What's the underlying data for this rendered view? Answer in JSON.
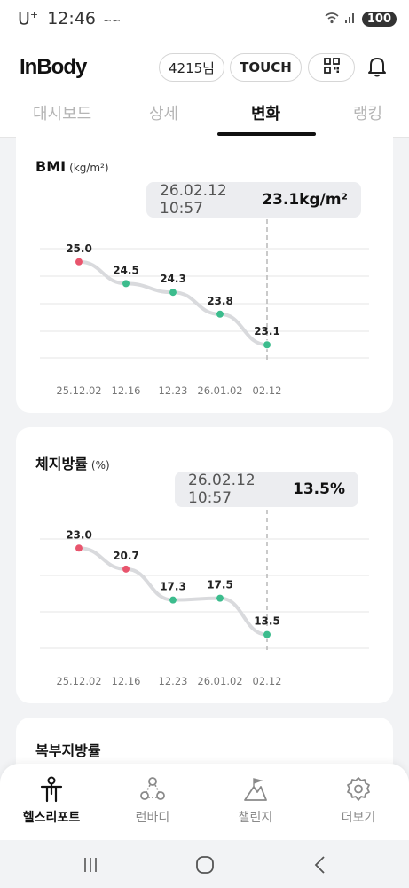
{
  "status": {
    "carrier": "U",
    "carrier_sup": "+",
    "time": "12:46",
    "battery": "100"
  },
  "header": {
    "logo": "InBody",
    "user_pill": "4215님",
    "touch_pill": "TOUCH"
  },
  "tabs": [
    "대시보드",
    "상세",
    "변화",
    "랭킹"
  ],
  "cards": [
    {
      "title": "BMI",
      "unit": "(kg/m²)",
      "tooltip_date": "26.02.12 10:57",
      "tooltip_value": "23.1kg/m²"
    },
    {
      "title": "체지방률",
      "unit": "(%)",
      "tooltip_date": "26.02.12 10:57",
      "tooltip_value": "13.5%"
    },
    {
      "title": "복부지방률"
    }
  ],
  "chart_data": [
    {
      "type": "line",
      "title": "BMI",
      "x": [
        "25.12.02",
        "12.16",
        "12.23",
        "26.01.02",
        "02.12"
      ],
      "values": [
        25.0,
        24.5,
        24.3,
        23.8,
        23.1
      ],
      "value_labels": [
        "25.0",
        "24.5",
        "24.3",
        "23.8",
        "23.1"
      ],
      "point_colors": [
        "#e8556d",
        "#3cbc8d",
        "#3cbc8d",
        "#3cbc8d",
        "#3cbc8d"
      ],
      "selected_index": 4,
      "grid": true
    },
    {
      "type": "line",
      "title": "체지방률",
      "x": [
        "25.12.02",
        "12.16",
        "12.23",
        "26.01.02",
        "02.12"
      ],
      "values": [
        23.0,
        20.7,
        17.3,
        17.5,
        13.5
      ],
      "value_labels": [
        "23.0",
        "20.7",
        "17.3",
        "17.5",
        "13.5"
      ],
      "point_colors": [
        "#e8556d",
        "#e8556d",
        "#3cbc8d",
        "#3cbc8d",
        "#3cbc8d"
      ],
      "selected_index": 4,
      "grid": true
    }
  ],
  "bottom_nav": [
    {
      "label": "헬스리포트",
      "icon": "health-report-icon",
      "active": true
    },
    {
      "label": "런바디",
      "icon": "runbody-icon",
      "active": false
    },
    {
      "label": "챌린지",
      "icon": "challenge-icon",
      "active": false
    },
    {
      "label": "더보기",
      "icon": "more-gear-icon",
      "active": false
    }
  ],
  "colors": {
    "red": "#e8556d",
    "green": "#3cbc8d",
    "line": "#d9dadd"
  }
}
